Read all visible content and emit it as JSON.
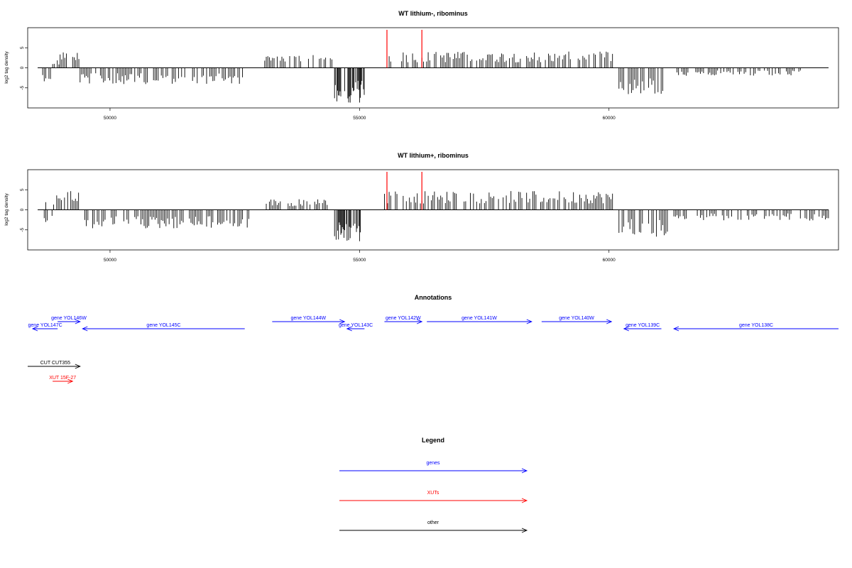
{
  "chart_data": [
    {
      "type": "bar",
      "title": "WT lithium-, ribominus",
      "ylabel": "log2 tag density",
      "xlim": [
        48350,
        64600
      ],
      "ylim": [
        -10,
        10
      ],
      "xticks": [
        50000,
        55000,
        60000
      ],
      "yticks": [
        5,
        0,
        -5
      ],
      "series_profile": [
        {
          "start": 48650,
          "end": 48850,
          "strand": "-",
          "level": -2.5
        },
        {
          "start": 48850,
          "end": 49000,
          "strand": "+",
          "level": 1.5
        },
        {
          "start": 49000,
          "end": 49400,
          "strand": "+",
          "level": 3
        },
        {
          "start": 49400,
          "end": 52700,
          "strand": "-",
          "level": -3
        },
        {
          "start": 53100,
          "end": 54500,
          "strand": "+",
          "level": 2.5
        },
        {
          "start": 54500,
          "end": 55100,
          "strand": "-",
          "level": -6.5
        },
        {
          "start": 55500,
          "end": 60100,
          "strand": "+",
          "level": 3
        },
        {
          "start": 60200,
          "end": 61100,
          "strand": "-",
          "level": -5
        },
        {
          "start": 61300,
          "end": 63900,
          "strand": "-",
          "level": -1.5
        }
      ],
      "markers": [
        55550,
        56250
      ]
    },
    {
      "type": "bar",
      "title": "WT lithium+, ribominus",
      "ylabel": "log2 tag density",
      "xlim": [
        48350,
        64600
      ],
      "ylim": [
        -10,
        10
      ],
      "xticks": [
        50000,
        55000,
        60000
      ],
      "yticks": [
        5,
        0,
        -5
      ],
      "series_profile": [
        {
          "start": 48650,
          "end": 48850,
          "strand": "-",
          "level": -2.5
        },
        {
          "start": 48650,
          "end": 48900,
          "strand": "+",
          "level": 1.5
        },
        {
          "start": 48900,
          "end": 49400,
          "strand": "+",
          "level": 3.5
        },
        {
          "start": 49400,
          "end": 52800,
          "strand": "-",
          "level": -3.5
        },
        {
          "start": 53100,
          "end": 54400,
          "strand": "+",
          "level": 2
        },
        {
          "start": 54500,
          "end": 55100,
          "strand": "-",
          "level": -6
        },
        {
          "start": 55500,
          "end": 60100,
          "strand": "+",
          "level": 3.5
        },
        {
          "start": 60200,
          "end": 61200,
          "strand": "-",
          "level": -5
        },
        {
          "start": 61300,
          "end": 64500,
          "strand": "-",
          "level": -2
        }
      ],
      "markers": [
        55550,
        56250
      ]
    }
  ],
  "annotations": {
    "title": "Annotations",
    "genes": [
      {
        "label": "gene YOL147C",
        "start": 48450,
        "end": 48950,
        "strand": "-",
        "row": 1
      },
      {
        "label": "gene YOL146W",
        "start": 48950,
        "end": 49400,
        "strand": "+",
        "row": 0
      },
      {
        "label": "gene YOL145C",
        "start": 49450,
        "end": 52700,
        "strand": "-",
        "row": 1
      },
      {
        "label": "gene YOL144W",
        "start": 53250,
        "end": 54700,
        "strand": "+",
        "row": 0
      },
      {
        "label": "gene YOL143C",
        "start": 54750,
        "end": 55100,
        "strand": "-",
        "row": 1
      },
      {
        "label": "gene YOL142W",
        "start": 55500,
        "end": 56250,
        "strand": "+",
        "row": 0
      },
      {
        "label": "gene YOL141W",
        "start": 56350,
        "end": 58450,
        "strand": "+",
        "row": 0
      },
      {
        "label": "gene YOL140W",
        "start": 58650,
        "end": 60050,
        "strand": "+",
        "row": 0
      },
      {
        "label": "gene YOL139C",
        "start": 60300,
        "end": 61050,
        "strand": "-",
        "row": 1
      },
      {
        "label": "gene YOL138C",
        "start": 61300,
        "end": 64600,
        "strand": "-",
        "row": 1
      }
    ],
    "other": [
      {
        "label": "CUT CUT355",
        "start": 48350,
        "end": 49400,
        "strand": "+"
      }
    ],
    "xuts": [
      {
        "label": "XUT 15F-27",
        "start": 48850,
        "end": 49250,
        "strand": "+"
      }
    ]
  },
  "legend": {
    "title": "Legend",
    "items": [
      {
        "label": "genes",
        "color": "#0000ff"
      },
      {
        "label": "XUTs",
        "color": "#ff0000"
      },
      {
        "label": "other",
        "color": "#000000"
      }
    ]
  },
  "colors": {
    "gene": "#0000ff",
    "xut": "#ff0000",
    "other": "#000000",
    "marker": "#ff0000",
    "bar": "#000000"
  }
}
